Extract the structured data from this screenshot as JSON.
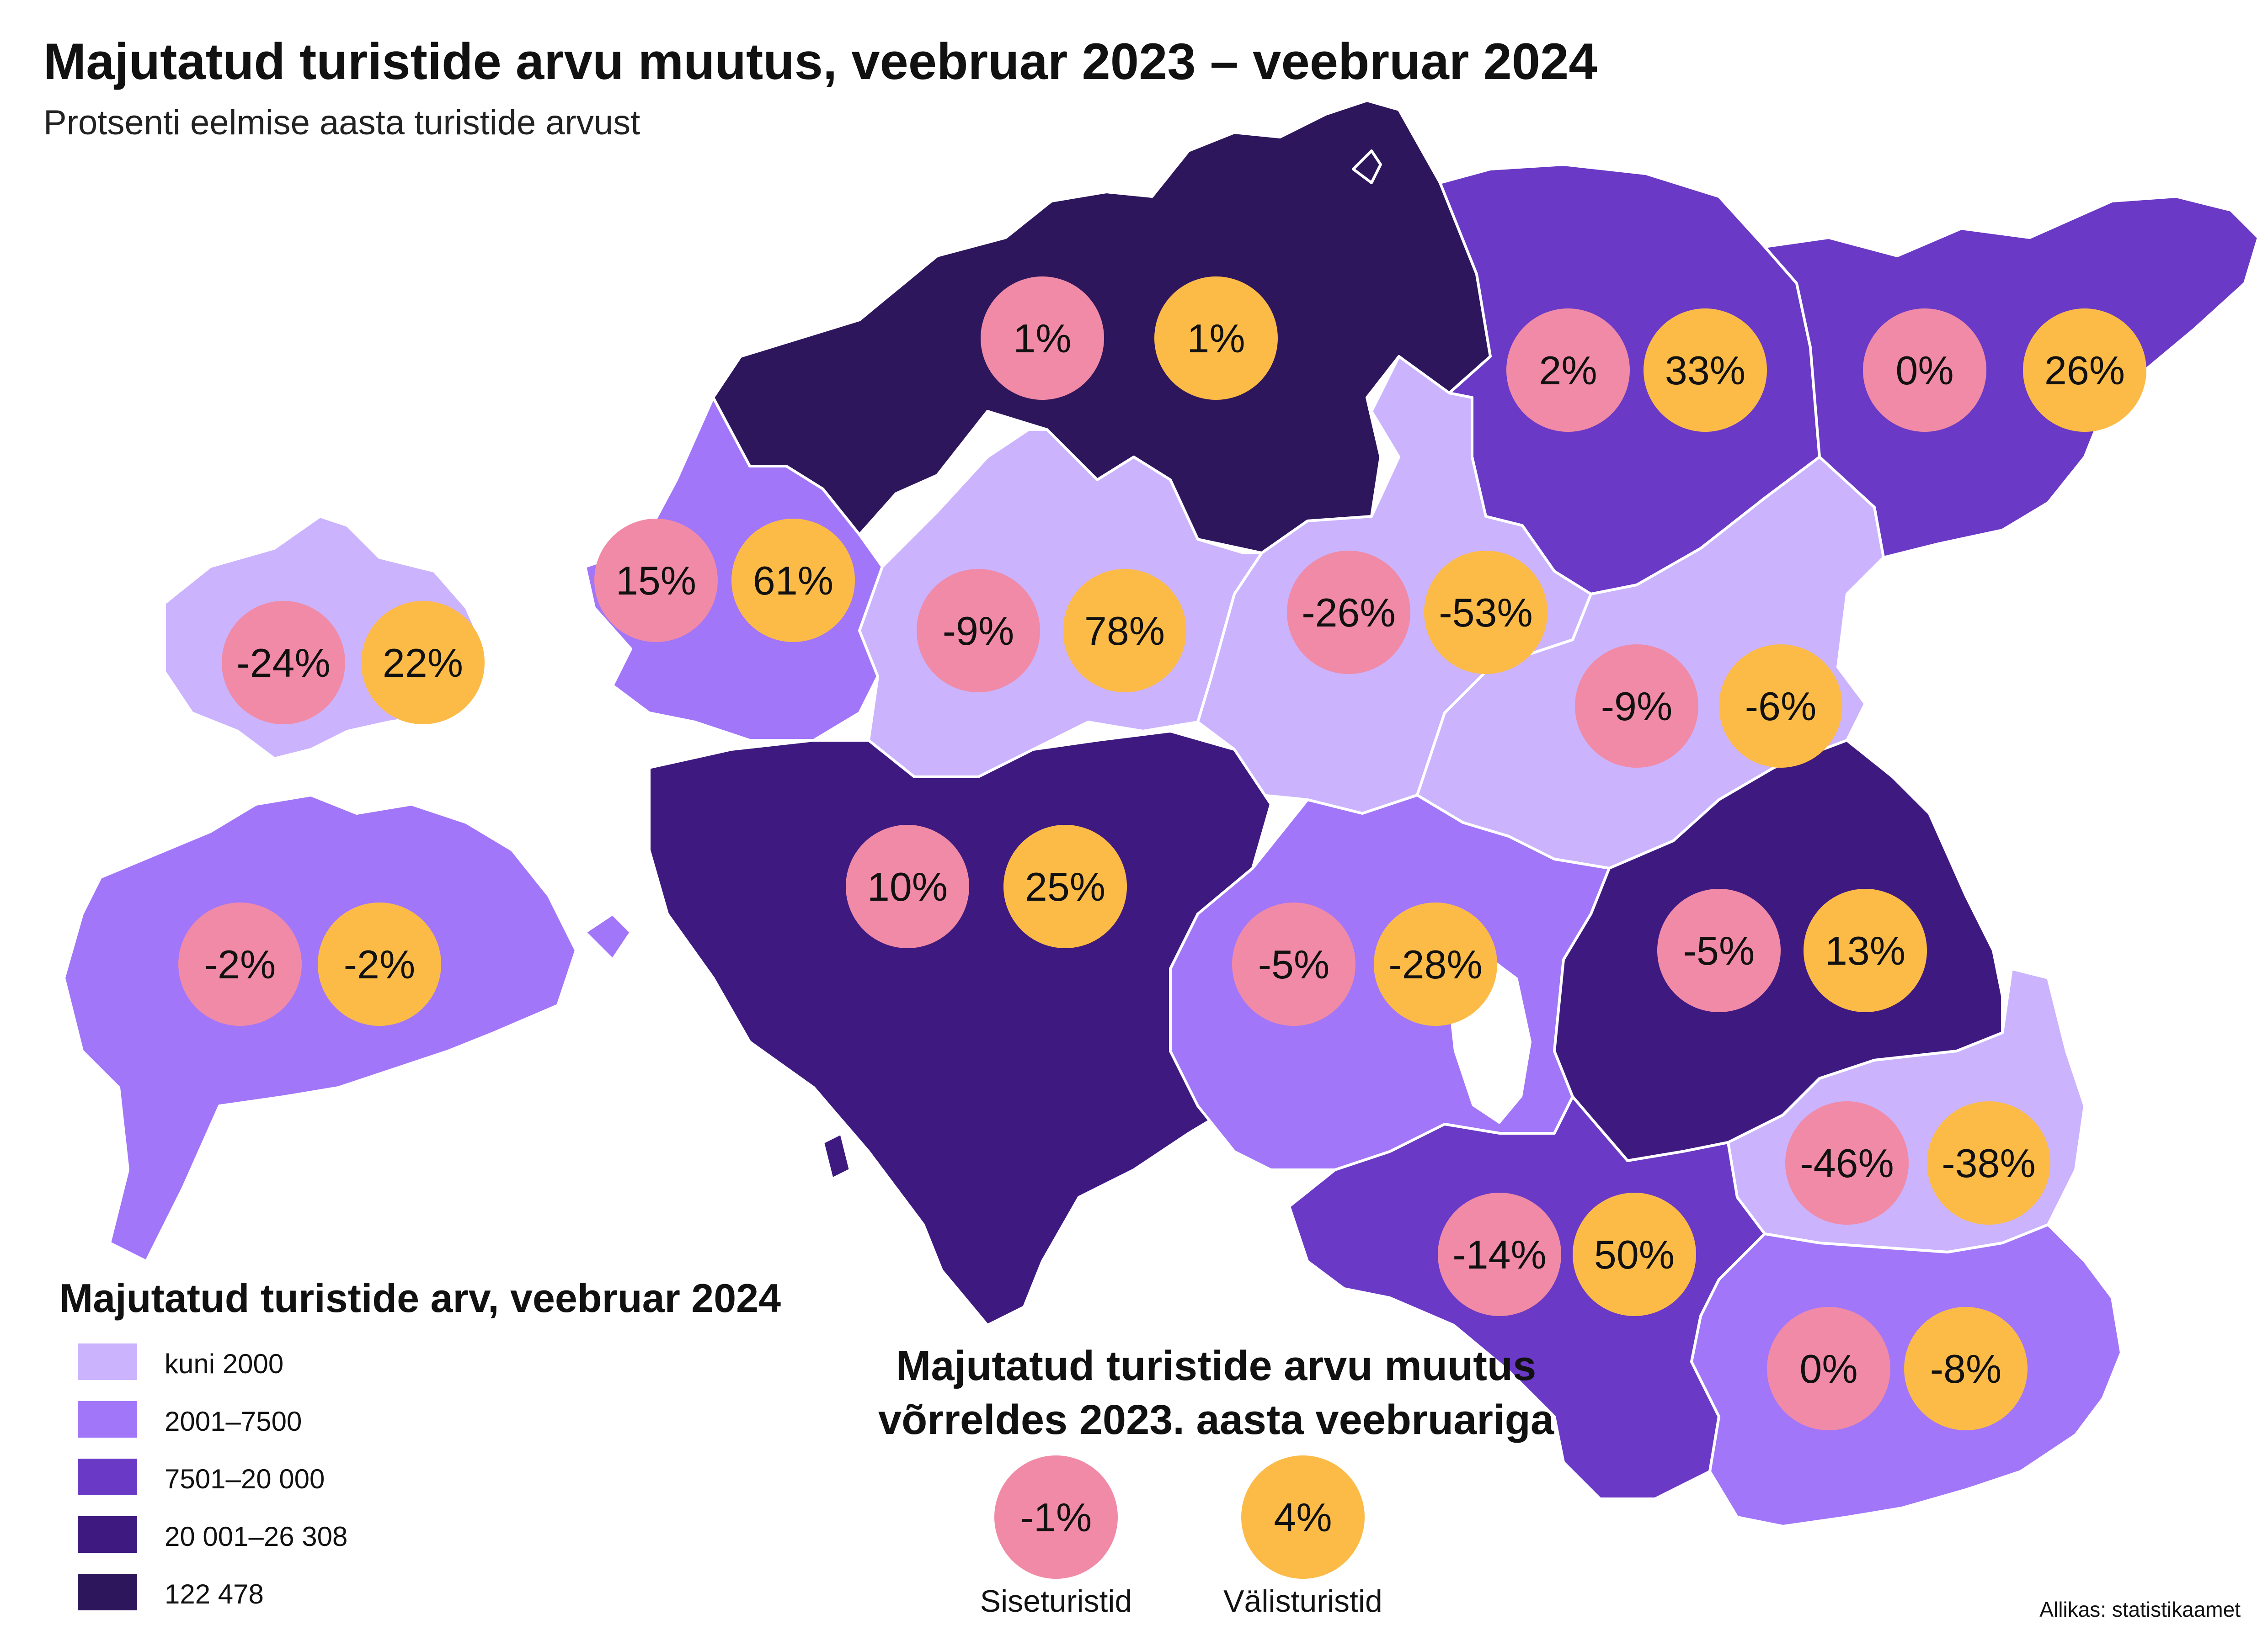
{
  "title": "Majutatud turistide arvu muutus, veebruar 2023 –  veebruar 2024",
  "subtitle": "Protsenti eelmise aasta turistide arvust",
  "colors": {
    "class_1": "#cbb3fe",
    "class_2": "#a276f8",
    "class_3": "#6a39c6",
    "class_4": "#3e1a80",
    "class_5": "#2e165c",
    "domestic_marker": "#f08aa6",
    "foreign_marker": "#fcbb47"
  },
  "legend": {
    "title": "Majutatud turistide arv, veebruar 2024",
    "items": [
      {
        "label": "kuni 2000",
        "color": "#cbb3fe"
      },
      {
        "label": "2001–7500",
        "color": "#a276f8"
      },
      {
        "label": "7501–20 000",
        "color": "#6a39c6"
      },
      {
        "label": "20 001–26 308",
        "color": "#3e1a80"
      },
      {
        "label": "122 478",
        "color": "#2e165c"
      }
    ]
  },
  "key": {
    "title_line1": "Majutatud turistide arvu muutus",
    "title_line2": "võrreldes 2023. aasta veebruariga",
    "domestic": {
      "value": "-1%",
      "label": "Siseturistid"
    },
    "foreign": {
      "value": "4%",
      "label": "Välisturistid"
    }
  },
  "regions": [
    {
      "class": "class_5",
      "domestic": "1%",
      "foreign": "1%"
    },
    {
      "class": "class_3",
      "domestic": "2%",
      "foreign": "33%"
    },
    {
      "class": "class_3",
      "domestic": "0%",
      "foreign": "26%"
    },
    {
      "class": "class_1",
      "domestic": "-24%",
      "foreign": "22%"
    },
    {
      "class": "class_2",
      "domestic": "15%",
      "foreign": "61%"
    },
    {
      "class": "class_1",
      "domestic": "-9%",
      "foreign": "78%"
    },
    {
      "class": "class_1",
      "domestic": "-26%",
      "foreign": "-53%"
    },
    {
      "class": "class_1",
      "domestic": "-9%",
      "foreign": "-6%"
    },
    {
      "class": "class_2",
      "domestic": "-2%",
      "foreign": "-2%"
    },
    {
      "class": "class_4",
      "domestic": "10%",
      "foreign": "25%"
    },
    {
      "class": "class_2",
      "domestic": "-5%",
      "foreign": "-28%"
    },
    {
      "class": "class_4",
      "domestic": "-5%",
      "foreign": "13%"
    },
    {
      "class": "class_1",
      "domestic": "-46%",
      "foreign": "-38%"
    },
    {
      "class": "class_3",
      "domestic": "-14%",
      "foreign": "50%"
    },
    {
      "class": "class_2",
      "domestic": "0%",
      "foreign": "-8%"
    }
  ],
  "source": "Allikas: statistikaamet"
}
